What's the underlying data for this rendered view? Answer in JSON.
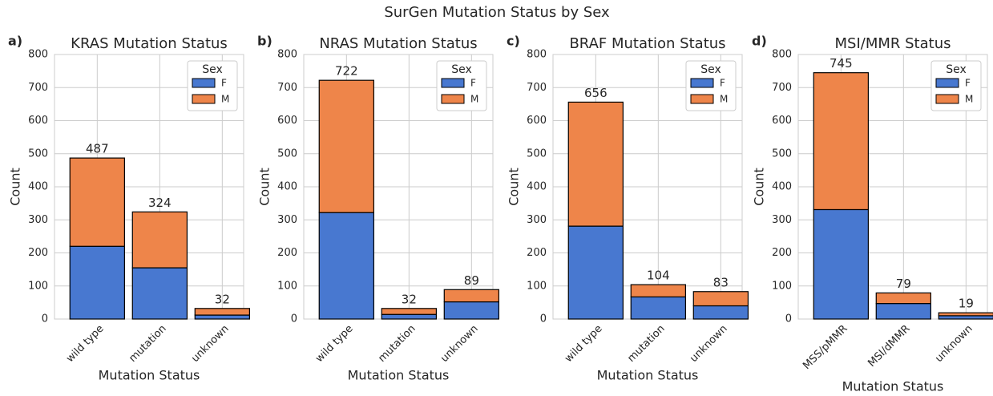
{
  "title": "SurGen Mutation Status by Sex",
  "chart_data": [
    {
      "type": "bar",
      "panel_label": "a)",
      "title": "KRAS Mutation Status",
      "xlabel": "Mutation Status",
      "ylabel": "Count",
      "categories": [
        "wild type",
        "mutation",
        "unknown"
      ],
      "series": [
        {
          "name": "F",
          "color": "#4878d0",
          "values": [
            220,
            155,
            12
          ]
        },
        {
          "name": "M",
          "color": "#ee854a",
          "values": [
            267,
            169,
            20
          ]
        }
      ],
      "totals": [
        487,
        324,
        32
      ],
      "ylim": [
        0,
        800
      ],
      "yticks": [
        0,
        100,
        200,
        300,
        400,
        500,
        600,
        700,
        800
      ],
      "grid": true,
      "legend_title": "Sex",
      "legend": "upper right"
    },
    {
      "type": "bar",
      "panel_label": "b)",
      "title": "NRAS Mutation Status",
      "xlabel": "Mutation Status",
      "ylabel": "Count",
      "categories": [
        "wild type",
        "mutation",
        "unknown"
      ],
      "series": [
        {
          "name": "F",
          "color": "#4878d0",
          "values": [
            322,
            14,
            52
          ]
        },
        {
          "name": "M",
          "color": "#ee854a",
          "values": [
            400,
            18,
            37
          ]
        }
      ],
      "totals": [
        722,
        32,
        89
      ],
      "ylim": [
        0,
        800
      ],
      "yticks": [
        0,
        100,
        200,
        300,
        400,
        500,
        600,
        700,
        800
      ],
      "grid": true,
      "legend_title": "Sex",
      "legend": "upper right"
    },
    {
      "type": "bar",
      "panel_label": "c)",
      "title": "BRAF Mutation Status",
      "xlabel": "Mutation Status",
      "ylabel": "Count",
      "categories": [
        "wild type",
        "mutation",
        "unknown"
      ],
      "series": [
        {
          "name": "F",
          "color": "#4878d0",
          "values": [
            281,
            67,
            40
          ]
        },
        {
          "name": "M",
          "color": "#ee854a",
          "values": [
            375,
            37,
            43
          ]
        }
      ],
      "totals": [
        656,
        104,
        83
      ],
      "ylim": [
        0,
        800
      ],
      "yticks": [
        0,
        100,
        200,
        300,
        400,
        500,
        600,
        700,
        800
      ],
      "grid": true,
      "legend_title": "Sex",
      "legend": "upper right"
    },
    {
      "type": "bar",
      "panel_label": "d)",
      "title": "MSI/MMR Status",
      "xlabel": "Mutation Status",
      "ylabel": "Count",
      "categories": [
        "MSS/pMMR",
        "MSI/dMMR",
        "unknown"
      ],
      "series": [
        {
          "name": "F",
          "color": "#4878d0",
          "values": [
            331,
            47,
            10
          ]
        },
        {
          "name": "M",
          "color": "#ee854a",
          "values": [
            414,
            32,
            9
          ]
        }
      ],
      "totals": [
        745,
        79,
        19
      ],
      "ylim": [
        0,
        800
      ],
      "yticks": [
        0,
        100,
        200,
        300,
        400,
        500,
        600,
        700,
        800
      ],
      "grid": true,
      "legend_title": "Sex",
      "legend": "upper right"
    }
  ]
}
